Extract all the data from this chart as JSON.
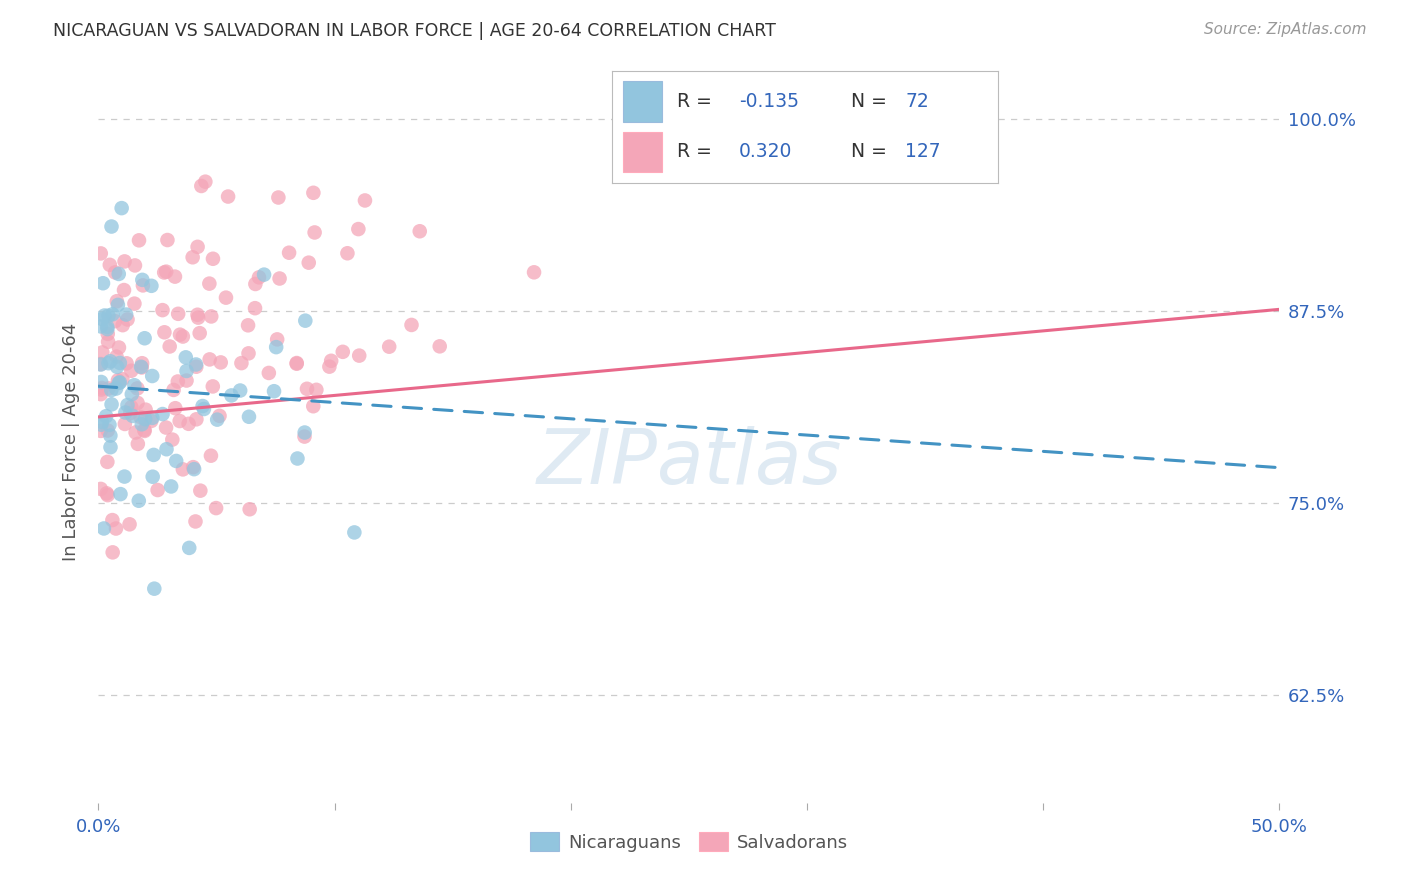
{
  "title": "NICARAGUAN VS SALVADORAN IN LABOR FORCE | AGE 20-64 CORRELATION CHART",
  "source": "Source: ZipAtlas.com",
  "ylabel": "In Labor Force | Age 20-64",
  "xlim": [
    0.0,
    0.5
  ],
  "ylim": [
    0.555,
    1.025
  ],
  "yticks": [
    0.625,
    0.75,
    0.875,
    1.0
  ],
  "ytick_labels": [
    "62.5%",
    "75.0%",
    "87.5%",
    "100.0%"
  ],
  "xtick_positions": [
    0.0,
    0.1,
    0.2,
    0.3,
    0.4,
    0.5
  ],
  "xtick_labels": [
    "0.0%",
    "",
    "",
    "",
    "",
    "50.0%"
  ],
  "watermark": "ZIPatlas",
  "blue_color": "#92c5de",
  "pink_color": "#f4a6b8",
  "blue_line_color": "#4393c3",
  "pink_line_color": "#e8688a",
  "legend_text_color": "#3366bb",
  "axis_tick_color": "#3366bb",
  "grid_color": "#cccccc",
  "blue_line_y0": 0.826,
  "blue_line_y1": 0.773,
  "pink_line_y0": 0.806,
  "pink_line_y1": 0.876
}
